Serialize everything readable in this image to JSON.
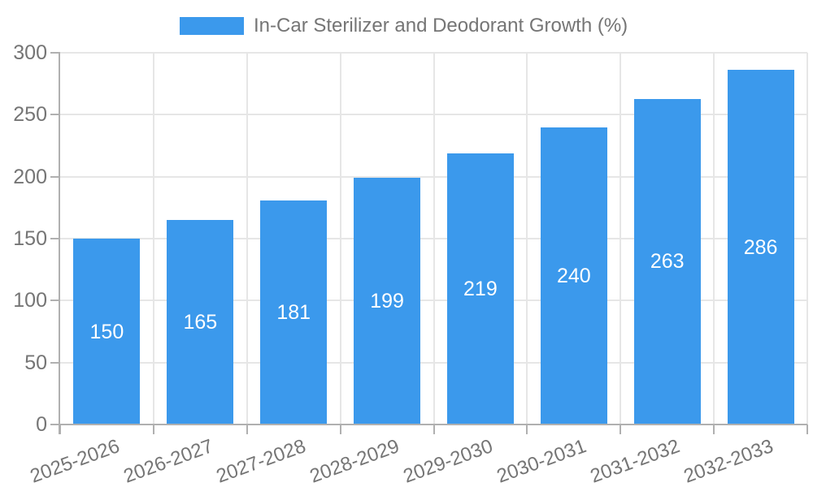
{
  "chart_data": {
    "type": "bar",
    "title": "In-Car Sterilizer and Deodorant Growth (%)",
    "xlabel": "",
    "ylabel": "",
    "categories": [
      "2025-2026",
      "2026-2027",
      "2027-2028",
      "2028-2029",
      "2029-2030",
      "2030-2031",
      "2031-2032",
      "2032-2033"
    ],
    "values": [
      150,
      165,
      181,
      199,
      219,
      240,
      263,
      286
    ],
    "value_labels": [
      "150",
      "165",
      "181",
      "199",
      "219",
      "240",
      "263",
      "286"
    ],
    "ylim": [
      0,
      300
    ],
    "yticks": [
      0,
      50,
      100,
      150,
      200,
      250,
      300
    ],
    "ytick_labels": [
      "0",
      "50",
      "100",
      "150",
      "200",
      "250",
      "300"
    ],
    "grid": "on",
    "legend_position": "top",
    "colors": {
      "bar": "#3b99ec",
      "grid": "#e6e6e6",
      "axis_line": "#b0b0b0",
      "axis_text": "#757575",
      "value_text": "#ffffff",
      "background": "#ffffff"
    }
  }
}
